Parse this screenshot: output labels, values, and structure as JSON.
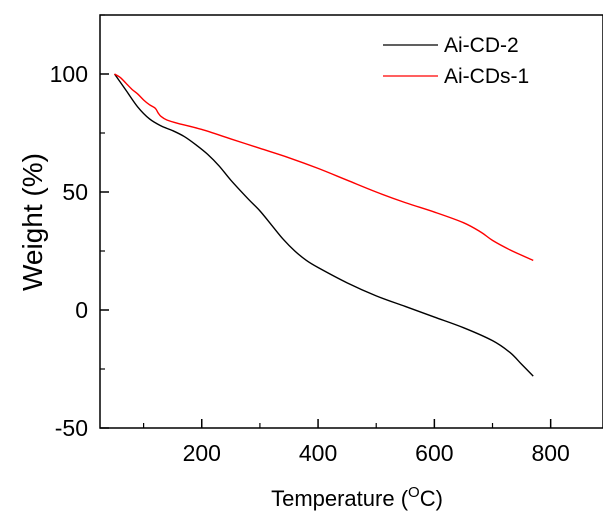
{
  "chart_data": {
    "type": "line",
    "xlabel": "Temperature (",
    "xlabel_sup": "O",
    "xlabel_suffix": "C)",
    "ylabel": "Weight (%)",
    "xlim": [
      25,
      890
    ],
    "ylim": [
      -50,
      125
    ],
    "xticks": [
      200,
      400,
      600,
      800
    ],
    "yticks": [
      -50,
      0,
      50,
      100
    ],
    "grid": false,
    "legend_position": "top-right",
    "series": [
      {
        "name": "Ai-CD-2",
        "color": "#000000",
        "x": [
          50,
          70,
          90,
          110,
          130,
          150,
          170,
          190,
          210,
          230,
          250,
          280,
          300,
          320,
          340,
          360,
          380,
          400,
          450,
          500,
          550,
          600,
          650,
          700,
          730,
          750,
          770
        ],
        "y": [
          100,
          93,
          86,
          81,
          78,
          76,
          73.5,
          70,
          66,
          61,
          55,
          47,
          42,
          36,
          30,
          25,
          21,
          18,
          11.5,
          6,
          1.5,
          -3,
          -7.5,
          -13,
          -18,
          -23,
          -28
        ]
      },
      {
        "name": "Ai-CDs-1",
        "color": "#ff0000",
        "x": [
          50,
          60,
          70,
          80,
          90,
          100,
          110,
          120,
          125,
          130,
          140,
          160,
          200,
          250,
          300,
          350,
          400,
          450,
          500,
          550,
          600,
          650,
          680,
          700,
          730,
          770
        ],
        "y": [
          100,
          98.5,
          96,
          93.5,
          91.5,
          89,
          87,
          85.5,
          83.5,
          82,
          80.5,
          79,
          76.5,
          72.5,
          68.5,
          64.5,
          60,
          55,
          50,
          45.5,
          41.5,
          37,
          33,
          29.5,
          25.5,
          21
        ]
      }
    ]
  }
}
